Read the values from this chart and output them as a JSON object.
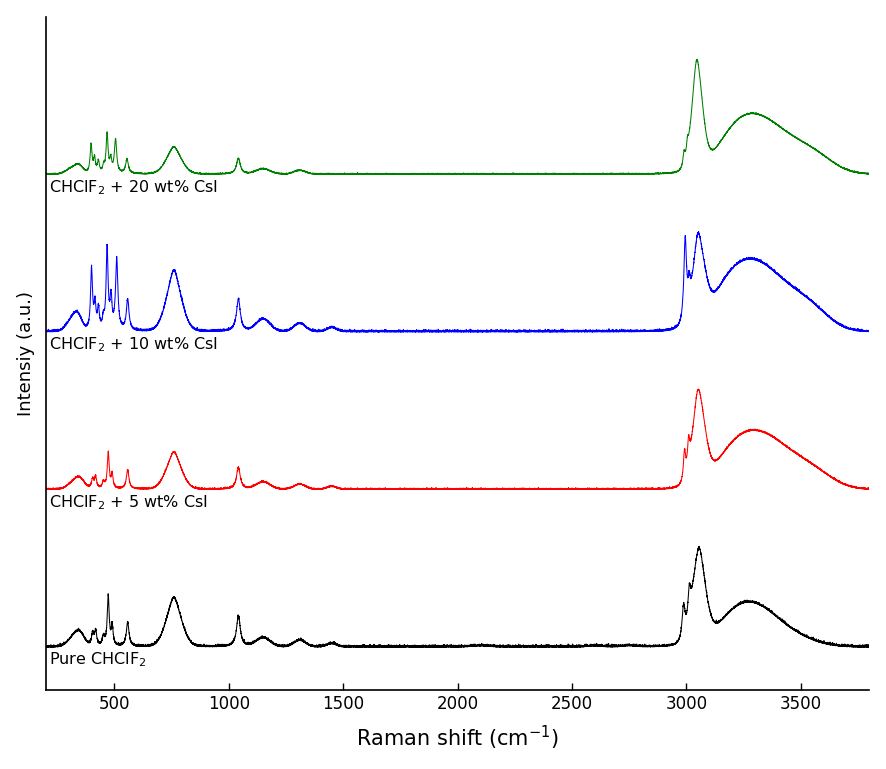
{
  "xlabel": "Raman shift (cm$^{-1}$)",
  "ylabel": "Intensiy (a.u.)",
  "xmin": 200,
  "xmax": 3800,
  "xticks": [
    500,
    1000,
    1500,
    2000,
    2500,
    3000,
    3500
  ],
  "colors": [
    "black",
    "red",
    "blue",
    "green"
  ],
  "labels": [
    "Pure CHClF$_2$",
    "CHClF$_2$ + 5 wt% CsI",
    "CHClF$_2$ + 10 wt% CsI",
    "CHClF$_2$ + 20 wt% CsI"
  ],
  "offsets": [
    0.0,
    0.22,
    0.44,
    0.66
  ],
  "figsize": [
    8.86,
    7.69
  ],
  "dpi": 100
}
